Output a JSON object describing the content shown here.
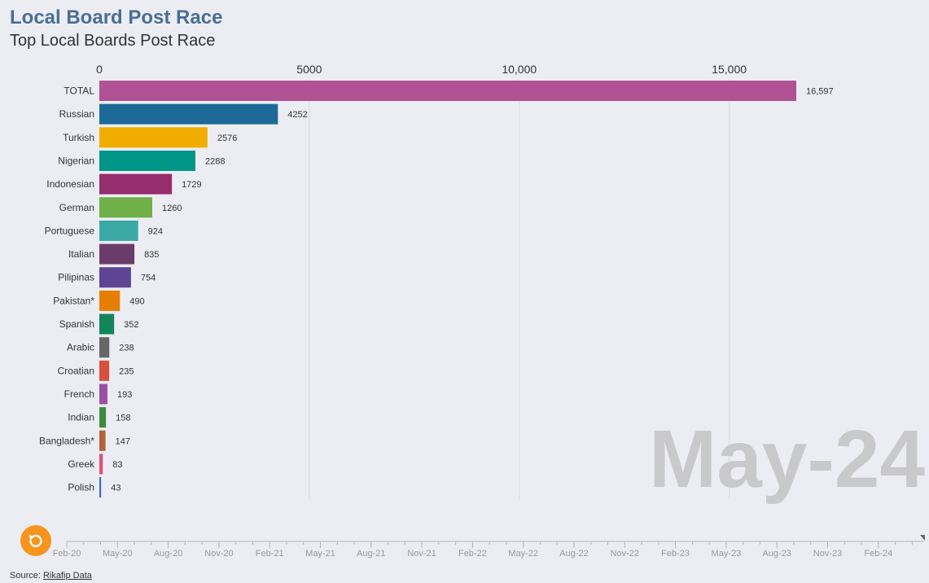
{
  "header": {
    "title": "Local Board Post Race",
    "subtitle": "Top Local Boards Post Race"
  },
  "current_date": "May-24",
  "source": {
    "prefix": "Source: ",
    "link_label": "Rikafip Data"
  },
  "replay_icon": "replay-icon",
  "timeline": {
    "labels": [
      "Feb-20",
      "May-20",
      "Aug-20",
      "Nov-20",
      "Feb-21",
      "May-21",
      "Aug-21",
      "Nov-21",
      "Feb-22",
      "May-22",
      "Aug-22",
      "Nov-22",
      "Feb-23",
      "May-23",
      "Aug-23",
      "Nov-23",
      "Feb-24"
    ]
  },
  "chart_data": {
    "type": "bar",
    "orientation": "horizontal",
    "title": "Local Board Post Race",
    "subtitle": "Top Local Boards Post Race",
    "categories": [
      "TOTAL",
      "Russian",
      "Turkish",
      "Nigerian",
      "Indonesian",
      "German",
      "Portuguese",
      "Italian",
      "Pilipinas",
      "Pakistan*",
      "Spanish",
      "Arabic",
      "Croatian",
      "French",
      "Indian",
      "Bangladesh*",
      "Greek",
      "Polish"
    ],
    "values": [
      16597,
      4252,
      2576,
      2288,
      1729,
      1260,
      924,
      835,
      754,
      490,
      352,
      238,
      235,
      193,
      158,
      147,
      83,
      43
    ],
    "value_labels": [
      "16,597",
      "4252",
      "2576",
      "2288",
      "1729",
      "1260",
      "924",
      "835",
      "754",
      "490",
      "352",
      "238",
      "235",
      "193",
      "158",
      "147",
      "83",
      "43"
    ],
    "colors": [
      "#b05293",
      "#1d6a99",
      "#f0ad00",
      "#009688",
      "#962d6d",
      "#6fb04a",
      "#3aa9a6",
      "#6b3c6b",
      "#5e4494",
      "#e67e00",
      "#13855a",
      "#666666",
      "#d85040",
      "#9b4fa5",
      "#3d8b3d",
      "#b0623a",
      "#d9537a",
      "#3f6fc4"
    ],
    "axis_ticks": [
      0,
      5000,
      10000,
      15000
    ],
    "axis_tick_labels": [
      "0",
      "5000",
      "10,000",
      "15,000"
    ],
    "xlim": [
      0,
      16597
    ],
    "xlabel": "",
    "ylabel": "",
    "grid": true
  }
}
